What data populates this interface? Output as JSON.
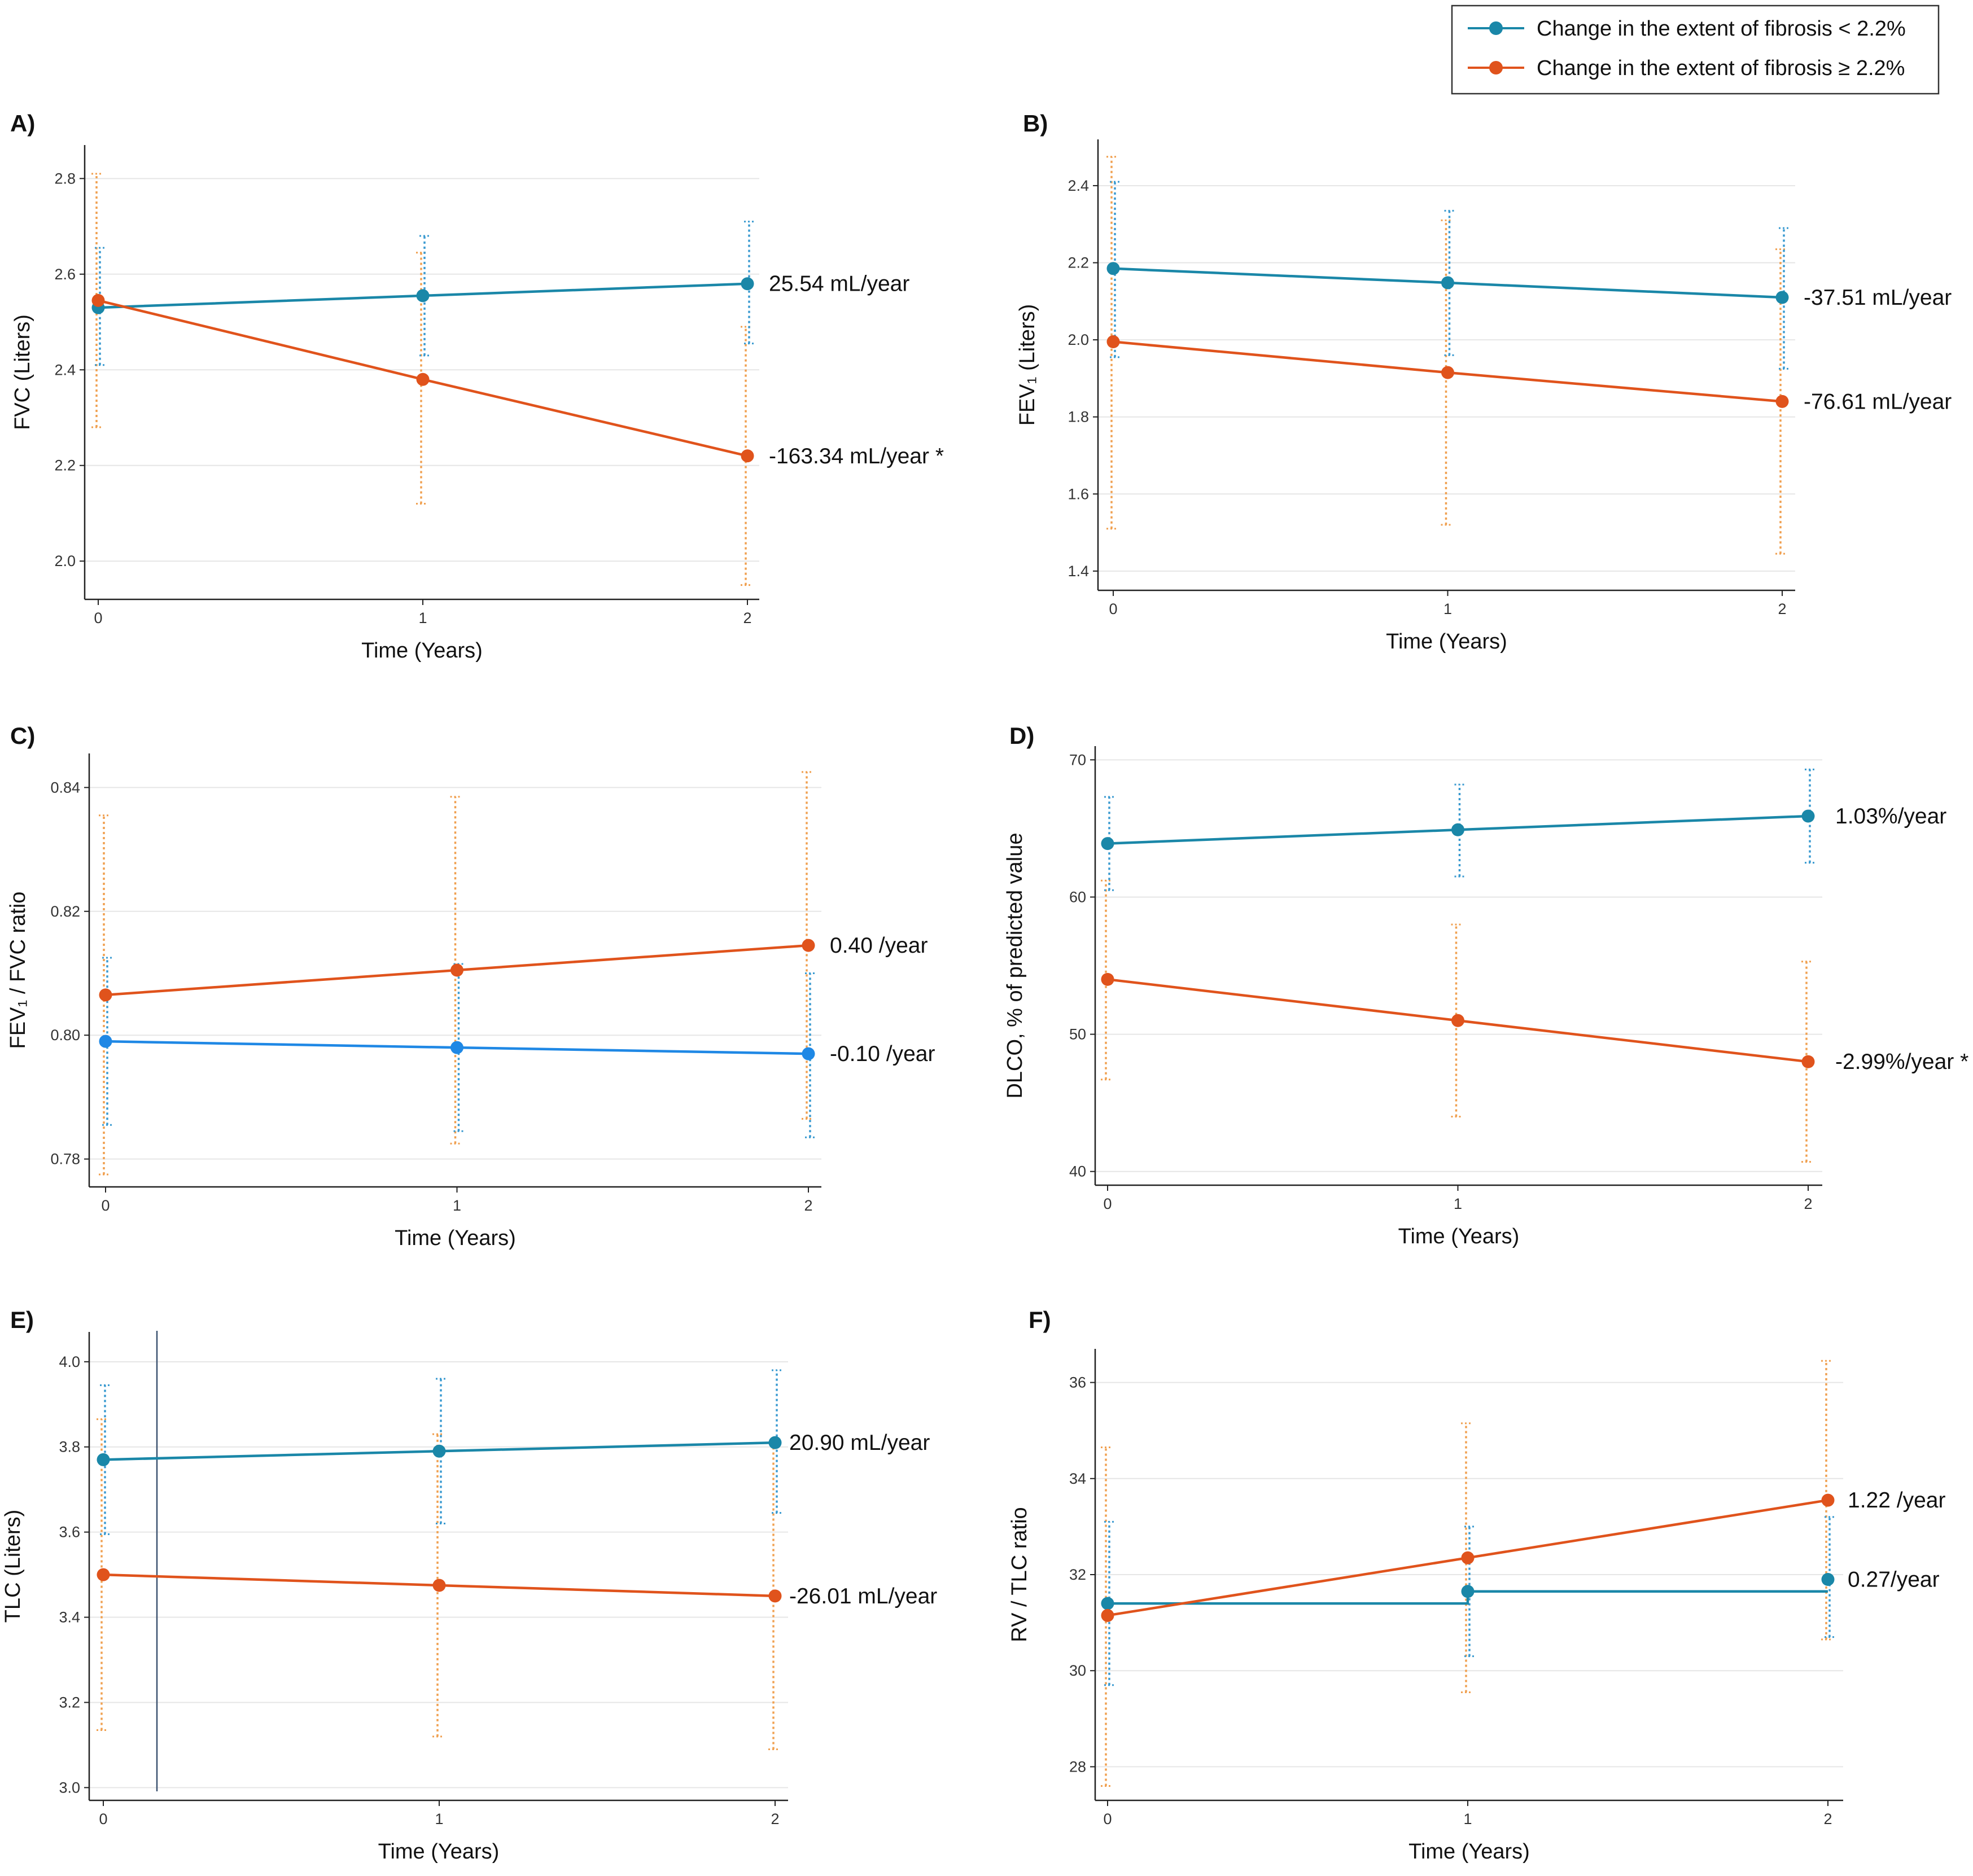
{
  "colors": {
    "group_low": "#1a87a8",
    "group_high": "#e0531c",
    "ci_low": "#3a9ad0",
    "ci_high": "#f0a050",
    "axis": "#222222",
    "grid": "#e6e6e6"
  },
  "legend": {
    "position": "top-right",
    "entries": [
      {
        "label": "Change in the extent of fibrosis < 2.2%",
        "color": "#1a87a8"
      },
      {
        "label": "Change in the extent of fibrosis ≥ 2.2%",
        "color": "#e0531c"
      }
    ]
  },
  "chart_data": [
    {
      "type": "line",
      "panel_label": "A)",
      "xlabel": "Time (Years)",
      "ylabel": "FVC (Liters)",
      "x": [
        0,
        1,
        2
      ],
      "ylim": [
        1.92,
        2.87
      ],
      "yticks": [
        2.0,
        2.2,
        2.4,
        2.6,
        2.8
      ],
      "ytick_labels": [
        "2.0",
        "2.2",
        "2.4",
        "2.6",
        "2.8"
      ],
      "xticks": [
        0,
        1,
        2
      ],
      "xtick_labels": [
        "0",
        "1",
        "2"
      ],
      "grid": true,
      "series": [
        {
          "group": "low",
          "values": [
            2.53,
            2.555,
            2.58
          ],
          "ci_low": [
            2.41,
            2.43,
            2.455
          ],
          "ci_high": [
            2.655,
            2.68,
            2.71
          ],
          "slope_label": "25.54 mL/year"
        },
        {
          "group": "high",
          "values": [
            2.545,
            2.38,
            2.22
          ],
          "ci_low": [
            2.28,
            2.12,
            1.95
          ],
          "ci_high": [
            2.81,
            2.645,
            2.49
          ],
          "slope_label": "-163.34 mL/year *"
        }
      ]
    },
    {
      "type": "line",
      "panel_label": "B)",
      "xlabel": "Time (Years)",
      "ylabel": "FEV₁ (Liters)",
      "x": [
        0,
        1,
        2
      ],
      "ylim": [
        1.35,
        2.52
      ],
      "yticks": [
        1.4,
        1.6,
        1.8,
        2.0,
        2.2,
        2.4
      ],
      "ytick_labels": [
        "1.4",
        "1.6",
        "1.8",
        "2.0",
        "2.2",
        "2.4"
      ],
      "xticks": [
        0,
        1,
        2
      ],
      "xtick_labels": [
        "0",
        "1",
        "2"
      ],
      "grid": true,
      "series": [
        {
          "group": "low",
          "values": [
            2.185,
            2.148,
            2.11
          ],
          "ci_low": [
            1.955,
            1.96,
            1.925
          ],
          "ci_high": [
            2.41,
            2.335,
            2.29
          ],
          "slope_label": "-37.51 mL/year"
        },
        {
          "group": "high",
          "values": [
            1.995,
            1.915,
            1.84
          ],
          "ci_low": [
            1.51,
            1.52,
            1.445
          ],
          "ci_high": [
            2.475,
            2.31,
            2.235
          ],
          "slope_label": "-76.61 mL/year"
        }
      ]
    },
    {
      "type": "line",
      "panel_label": "C)",
      "xlabel": "Time (Years)",
      "ylabel": "FEV₁ / FVC ratio",
      "x": [
        0,
        1,
        2
      ],
      "ylim": [
        0.7755,
        0.8455
      ],
      "yticks": [
        0.78,
        0.8,
        0.82,
        0.84
      ],
      "ytick_labels": [
        "0.78",
        "0.80",
        "0.82",
        "0.84"
      ],
      "xticks": [
        0,
        1,
        2
      ],
      "xtick_labels": [
        "0",
        "1",
        "2"
      ],
      "grid": true,
      "series": [
        {
          "group": "low",
          "values": [
            0.799,
            0.798,
            0.797
          ],
          "ci_low": [
            0.7855,
            0.7845,
            0.7835
          ],
          "ci_high": [
            0.8125,
            0.8115,
            0.81
          ],
          "slope_label": "-0.10 /year",
          "color": "#1f88e5"
        },
        {
          "group": "high",
          "values": [
            0.8065,
            0.8105,
            0.8145
          ],
          "ci_low": [
            0.7775,
            0.7825,
            0.7865
          ],
          "ci_high": [
            0.8355,
            0.8385,
            0.8425
          ],
          "slope_label": "0.40 /year"
        }
      ]
    },
    {
      "type": "line",
      "panel_label": "D)",
      "xlabel": "Time (Years)",
      "ylabel": "DLCO, % of predicted value",
      "x": [
        0,
        1,
        2
      ],
      "ylim": [
        39,
        71
      ],
      "yticks": [
        40,
        50,
        60,
        70
      ],
      "ytick_labels": [
        "40",
        "50",
        "60",
        "70"
      ],
      "xticks": [
        0,
        1,
        2
      ],
      "xtick_labels": [
        "0",
        "1",
        "2"
      ],
      "grid": true,
      "series": [
        {
          "group": "low",
          "values": [
            63.9,
            64.9,
            65.9
          ],
          "ci_low": [
            60.5,
            61.5,
            62.5
          ],
          "ci_high": [
            67.3,
            68.2,
            69.3
          ],
          "slope_label": "1.03%/year"
        },
        {
          "group": "high",
          "values": [
            54.0,
            51.0,
            48.0
          ],
          "ci_low": [
            46.7,
            44.0,
            40.7
          ],
          "ci_high": [
            61.2,
            58.0,
            55.3
          ],
          "slope_label": "-2.99%/year *"
        }
      ]
    },
    {
      "type": "line",
      "panel_label": "E)",
      "xlabel": "Time (Years)",
      "ylabel": "TLC (Liters)",
      "x": [
        0,
        1,
        2
      ],
      "ylim": [
        2.97,
        4.07
      ],
      "yticks": [
        3.0,
        3.2,
        3.4,
        3.6,
        3.8,
        4.0
      ],
      "ytick_labels": [
        "3.0",
        "3.2",
        "3.4",
        "3.6",
        "3.8",
        "4.0"
      ],
      "xticks": [
        0,
        1,
        2
      ],
      "xtick_labels": [
        "0",
        "1",
        "2"
      ],
      "grid": true,
      "series": [
        {
          "group": "low",
          "values": [
            3.77,
            3.79,
            3.81
          ],
          "ci_low": [
            3.595,
            3.62,
            3.645
          ],
          "ci_high": [
            3.945,
            3.96,
            3.98
          ],
          "slope_label": "20.90 mL/year"
        },
        {
          "group": "high",
          "values": [
            3.5,
            3.475,
            3.45
          ],
          "ci_low": [
            3.135,
            3.12,
            3.09
          ],
          "ci_high": [
            3.865,
            3.83,
            3.81
          ],
          "slope_label": "-26.01 mL/year"
        }
      ]
    },
    {
      "type": "line",
      "panel_label": "F)",
      "xlabel": "Time (Years)",
      "ylabel": "RV / TLC ratio",
      "x": [
        0,
        1,
        2
      ],
      "ylim": [
        27.3,
        36.7
      ],
      "yticks": [
        28,
        30,
        32,
        34,
        36
      ],
      "ytick_labels": [
        "28",
        "30",
        "32",
        "34",
        "36"
      ],
      "xticks": [
        0,
        1,
        2
      ],
      "xtick_labels": [
        "0",
        "1",
        "2"
      ],
      "grid": true,
      "series": [
        {
          "group": "low",
          "values": [
            31.4,
            31.65,
            31.9
          ],
          "ci_low": [
            29.7,
            30.3,
            30.7
          ],
          "ci_high": [
            33.1,
            33.0,
            33.2
          ],
          "slope_label": "0.27/year",
          "step": true
        },
        {
          "group": "high",
          "values": [
            31.15,
            32.35,
            33.55
          ],
          "ci_low": [
            27.6,
            29.55,
            30.65
          ],
          "ci_high": [
            34.65,
            35.15,
            36.45
          ],
          "slope_label": "1.22 /year"
        }
      ]
    }
  ]
}
